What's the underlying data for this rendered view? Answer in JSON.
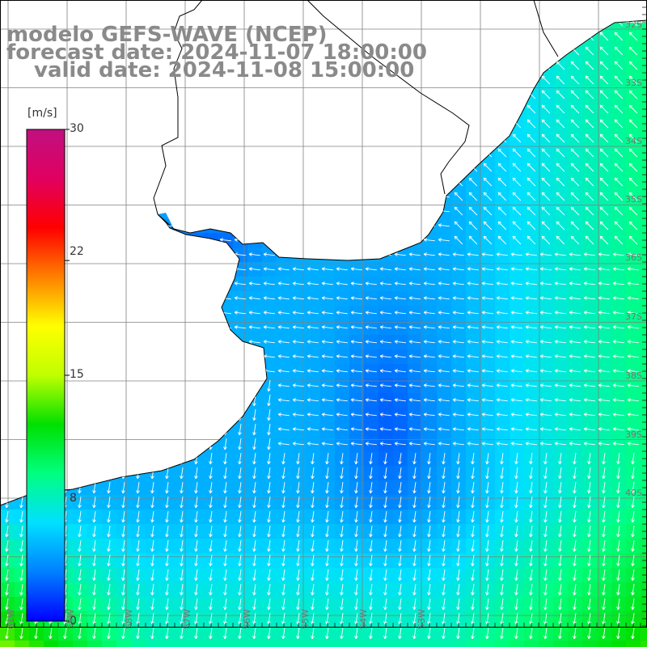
{
  "title": {
    "line1": "modelo GEFS-WAVE (NCEP)",
    "line2": "forecast date: 2024-11-07 18:00:00",
    "line3": "valid date: 2024-11-08 15:00:00"
  },
  "colorbar": {
    "unit": "[m/s]",
    "ticks": [
      "30",
      "22",
      "15",
      "8",
      "0"
    ],
    "tick_values": [
      30,
      22,
      15,
      8,
      0
    ],
    "range": [
      0,
      30
    ],
    "colors": [
      "#0000ff",
      "#0080ff",
      "#00e0ff",
      "#00ff80",
      "#00e000",
      "#c0ff00",
      "#ffff00",
      "#ff8000",
      "#ff0000",
      "#e00060",
      "#c01080"
    ]
  },
  "map": {
    "land_color": "#ffffff",
    "coastline_color": "#000000",
    "grid_color": "#808080",
    "vector_color": "#ffffff",
    "lat_labels": [
      "32S",
      "33S",
      "34S",
      "35S",
      "36S",
      "37S",
      "38S",
      "39S",
      "40S"
    ],
    "lon_labels": [
      "61W",
      "59W",
      "58W",
      "57W",
      "56W",
      "55W",
      "54W",
      "53W"
    ]
  }
}
